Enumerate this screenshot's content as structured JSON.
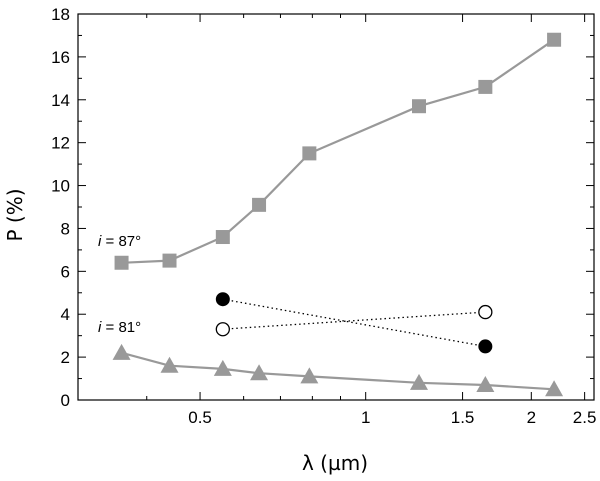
{
  "chart_data": {
    "type": "line",
    "title": "",
    "xlabel": "λ (µm)",
    "ylabel": "P (%)",
    "xscale": "log",
    "xlim": [
      0.3,
      2.6
    ],
    "ylim": [
      0,
      18
    ],
    "grid": false,
    "xticks": [
      {
        "value": 0.5,
        "label": "0.5"
      },
      {
        "value": 1,
        "label": "1"
      },
      {
        "value": 1.5,
        "label": "1.5"
      },
      {
        "value": 2,
        "label": "2"
      },
      {
        "value": 2.5,
        "label": "2.5"
      }
    ],
    "yticks": [
      {
        "value": 0,
        "label": "0"
      },
      {
        "value": 2,
        "label": "2"
      },
      {
        "value": 4,
        "label": "4"
      },
      {
        "value": 6,
        "label": "6"
      },
      {
        "value": 8,
        "label": "8"
      },
      {
        "value": 10,
        "label": "10"
      },
      {
        "value": 12,
        "label": "12"
      },
      {
        "value": 14,
        "label": "14"
      },
      {
        "value": 16,
        "label": "16"
      },
      {
        "value": 18,
        "label": "18"
      }
    ],
    "series": [
      {
        "name": "i = 87°",
        "marker": "square",
        "color": "#999999",
        "line": "solid",
        "x": [
          0.36,
          0.44,
          0.55,
          0.64,
          0.79,
          1.25,
          1.65,
          2.2
        ],
        "y": [
          6.4,
          6.5,
          7.6,
          9.1,
          11.5,
          13.7,
          14.6,
          16.8
        ]
      },
      {
        "name": "i = 81°",
        "marker": "triangle",
        "color": "#999999",
        "line": "solid",
        "x": [
          0.36,
          0.44,
          0.55,
          0.64,
          0.79,
          1.25,
          1.65,
          2.2
        ],
        "y": [
          2.2,
          1.6,
          1.45,
          1.25,
          1.1,
          0.8,
          0.7,
          0.5
        ]
      },
      {
        "name": "filled circles",
        "marker": "circle-filled",
        "color": "#000000",
        "line": "dotted",
        "x": [
          0.55,
          1.65
        ],
        "y": [
          4.7,
          2.5
        ]
      },
      {
        "name": "open circles",
        "marker": "circle-open",
        "color": "#000000",
        "line": "dotted",
        "x": [
          0.55,
          1.65
        ],
        "y": [
          3.3,
          4.1
        ]
      }
    ],
    "annotations": [
      {
        "italic": "i",
        "rest": " = 87°",
        "series": 0
      },
      {
        "italic": "i",
        "rest": " = 81°",
        "series": 1
      }
    ]
  }
}
